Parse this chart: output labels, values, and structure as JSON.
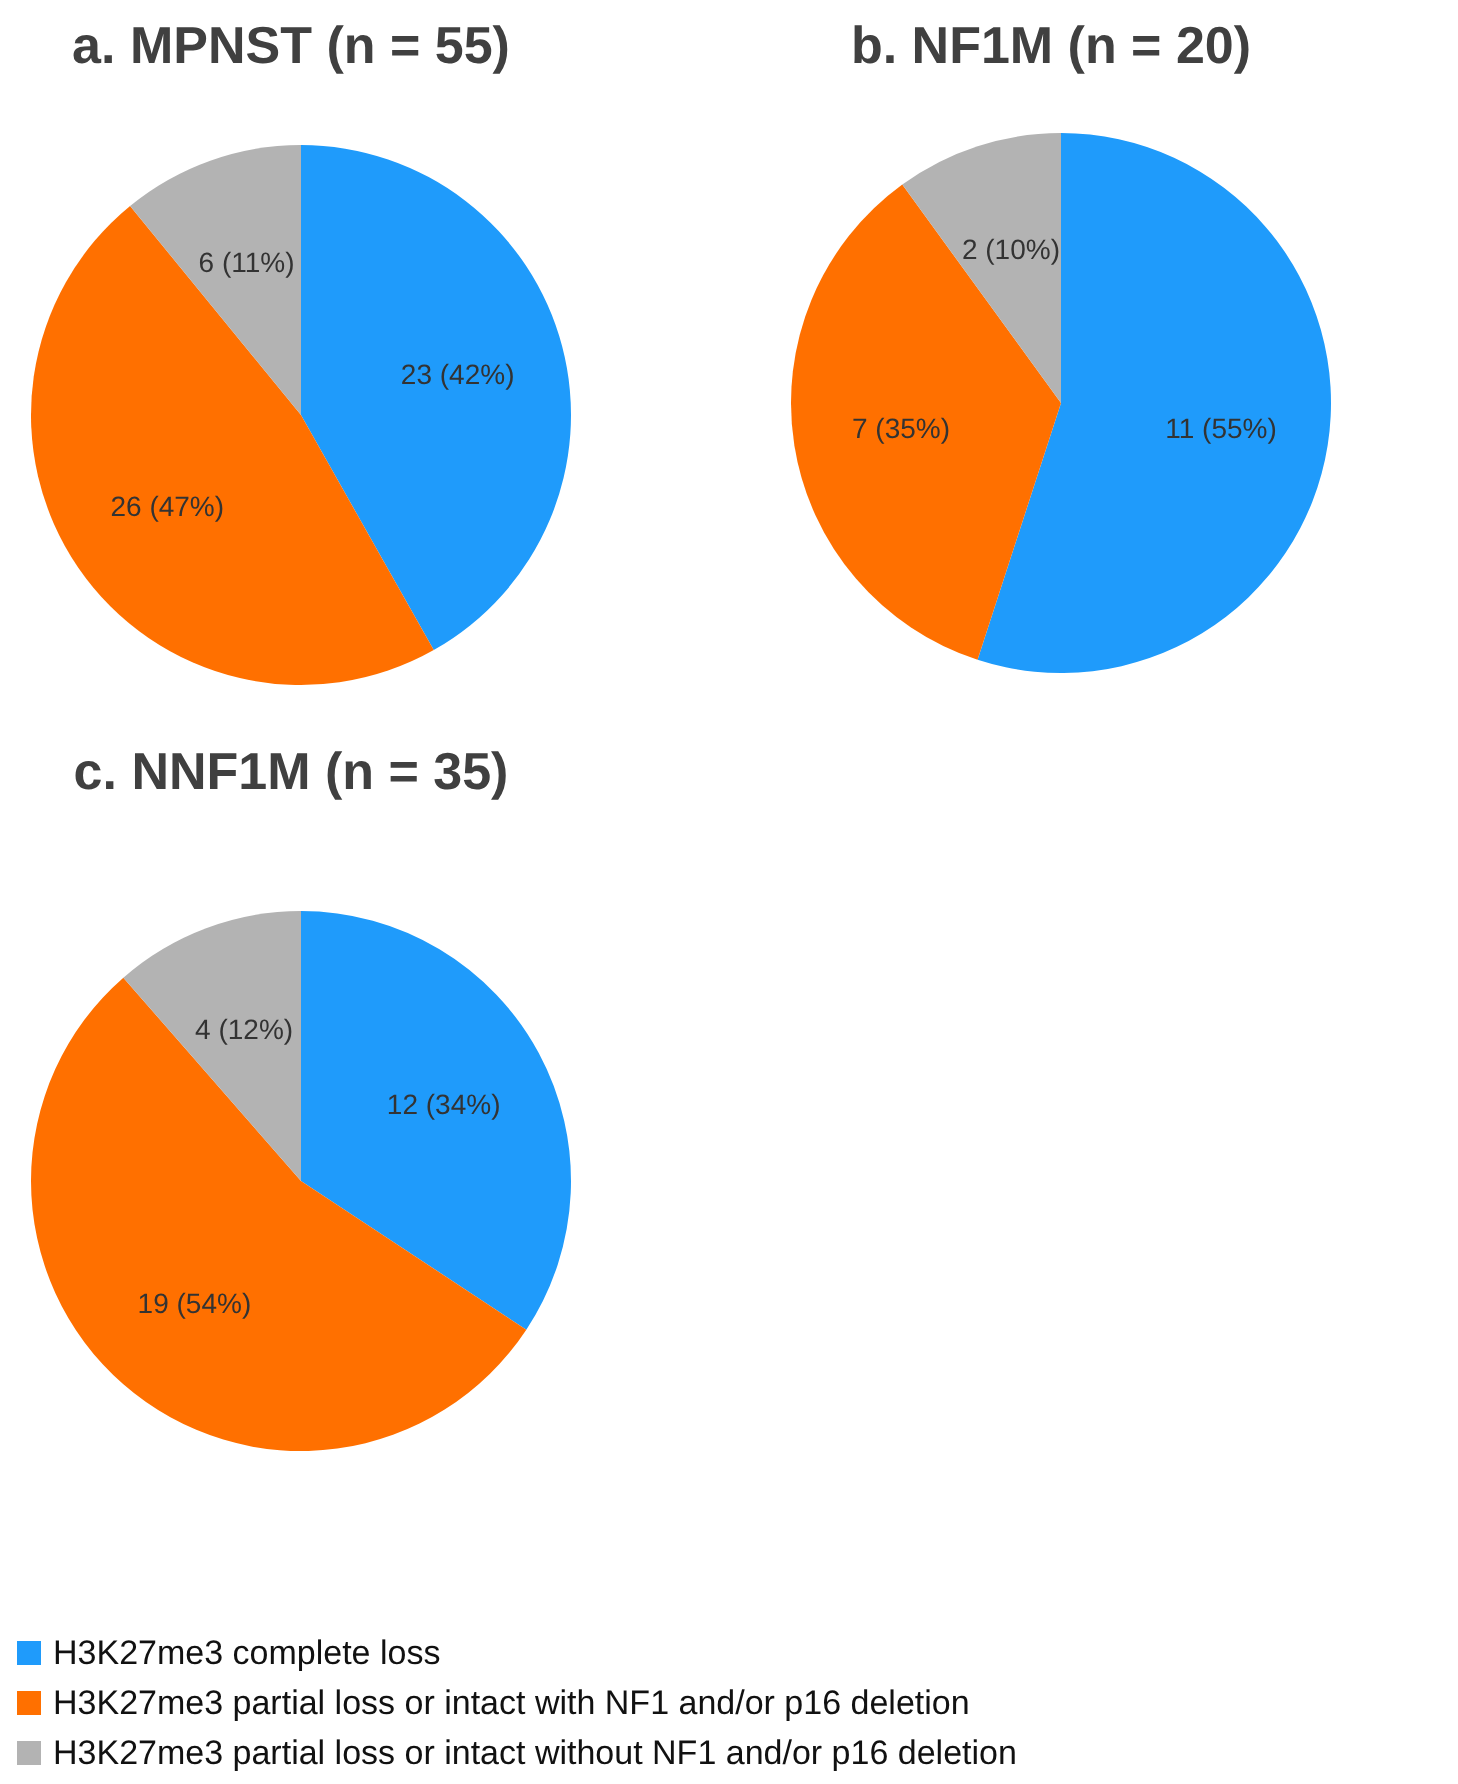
{
  "chart_data": [
    {
      "type": "pie",
      "title": "a. MPNST (n = 55)",
      "values": [
        23,
        26,
        6
      ],
      "value_labels": [
        "23 (42%)",
        "26 (47%)",
        "6 (11%)"
      ],
      "colors": [
        "#1f9bfb",
        "#ff7000",
        "#b3b3b3"
      ]
    },
    {
      "type": "pie",
      "title": "b. NF1M (n = 20)",
      "values": [
        11,
        7,
        2
      ],
      "value_labels": [
        "11 (55%)",
        "7 (35%)",
        "2 (10%)"
      ],
      "colors": [
        "#1f9bfb",
        "#ff7000",
        "#b3b3b3"
      ]
    },
    {
      "type": "pie",
      "title": "c. NNF1M (n = 35)",
      "categories": [
        "H3K27me3 complete loss",
        "H3K27me3 partial loss or intact with NF1 and/or p16 deletion",
        "H3K27me3 partial loss or intact without NF1 and/or p16 deletion"
      ],
      "values": [
        12,
        19,
        4
      ],
      "value_labels": [
        "12 (34%)",
        "19 (54%)",
        "4 (12%)"
      ],
      "colors": [
        "#1f9bfb",
        "#ff7000",
        "#b3b3b3"
      ],
      "legend": "bottom"
    }
  ]
}
